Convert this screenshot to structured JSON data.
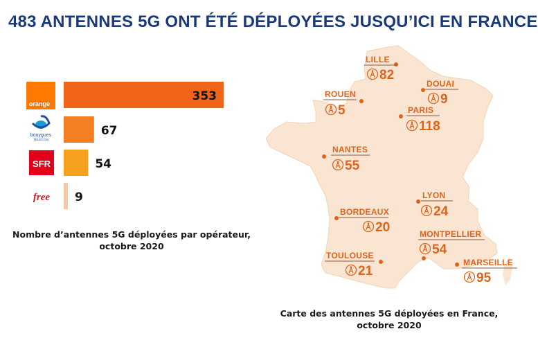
{
  "title": "483 ANTENNES 5G ONT ÉTÉ DÉPLOYÉES JUSQU’ICI EN FRANCE",
  "colors": {
    "title": "#1a3a7a",
    "orange_brand": "#ff7900",
    "bouygues_blue": "#1f4fa0",
    "sfr_red": "#e2001a",
    "free_red": "#cd1e25",
    "map_fill": "#f9e5d2",
    "accent": "#e0631a"
  },
  "chart_data": [
    {
      "type": "bar",
      "orientation": "horizontal",
      "categories": [
        "Orange",
        "Bouygues",
        "SFR",
        "Free"
      ],
      "values": [
        353,
        67,
        54,
        9
      ],
      "bar_colors": [
        "#f06418",
        "#f37f22",
        "#f8a020",
        "#f6c7a6"
      ],
      "logos": [
        {
          "text": "orange",
          "icon": "orange-logo"
        },
        {
          "text": "bouygues TELECOM",
          "icon": "bouygues-logo"
        },
        {
          "text": "SFR",
          "icon": "sfr-logo"
        },
        {
          "text": "free",
          "icon": "free-logo"
        }
      ],
      "caption": [
        "Nombre d’antennes 5G déployées par opérateur,",
        "octobre 2020"
      ],
      "xlim": [
        0,
        353
      ]
    },
    {
      "type": "map",
      "cities": [
        {
          "name": "LILLE",
          "value": 82
        },
        {
          "name": "DOUAI",
          "value": 9
        },
        {
          "name": "ROUEN",
          "value": 5
        },
        {
          "name": "PARIS",
          "value": 118
        },
        {
          "name": "NANTES",
          "value": 55
        },
        {
          "name": "LYON",
          "value": 24
        },
        {
          "name": "BORDEAUX",
          "value": 20
        },
        {
          "name": "MONTPELLIER",
          "value": 54
        },
        {
          "name": "TOULOUSE",
          "value": 21
        },
        {
          "name": "MARSEILLE",
          "value": 95
        }
      ],
      "caption": [
        "Carte des antennes 5G déployées en France,",
        "octobre 2020"
      ]
    }
  ]
}
